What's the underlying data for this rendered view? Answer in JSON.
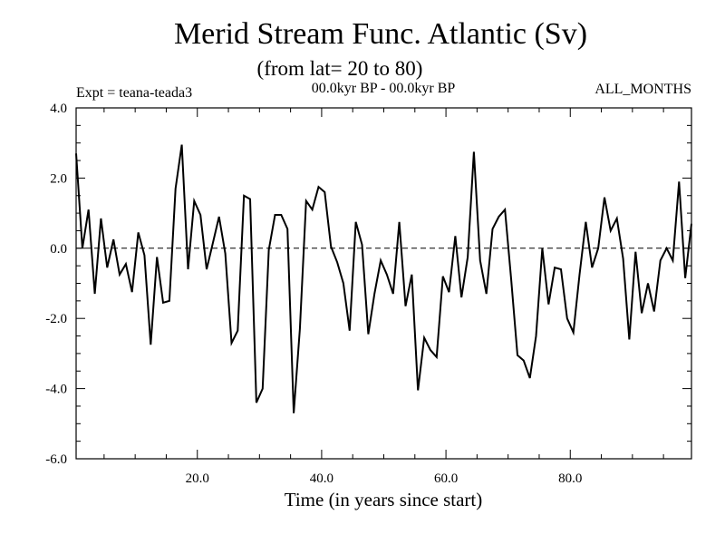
{
  "chart_data": {
    "type": "line",
    "title": "Merid Stream Func. Atlantic (Sv)",
    "subtitle": "(from lat= 20 to 80)",
    "annotation_left": "Expt = teana-teada3",
    "annotation_center": "00.0kyr BP - 00.0kyr BP",
    "annotation_right": "ALL_MONTHS",
    "xlabel": "Time (in years since start)",
    "ylabel": "",
    "xlim": [
      0.5,
      99.5
    ],
    "ylim": [
      -6.0,
      4.0
    ],
    "xticks": [
      20,
      40,
      60,
      80
    ],
    "xtick_labels": [
      "20.0",
      "40.0",
      "60.0",
      "80.0"
    ],
    "yticks": [
      -6,
      -4,
      -2,
      0,
      2,
      4
    ],
    "ytick_labels": [
      "-6.0",
      "-4.0",
      "-2.0",
      "0.0",
      "2.0",
      "4.0"
    ],
    "zero_line": "dashed",
    "series": [
      {
        "name": "Merid Stream Func.",
        "color": "#000000",
        "x": [
          0.5,
          1.5,
          2.5,
          3.5,
          4.5,
          5.5,
          6.5,
          7.5,
          8.5,
          9.5,
          10.5,
          11.5,
          12.5,
          13.5,
          14.5,
          15.5,
          16.5,
          17.5,
          18.5,
          19.5,
          20.5,
          21.5,
          22.5,
          23.5,
          24.5,
          25.5,
          26.5,
          27.5,
          28.5,
          29.5,
          30.5,
          31.5,
          32.5,
          33.5,
          34.5,
          35.5,
          36.5,
          37.5,
          38.5,
          39.5,
          40.5,
          41.5,
          42.5,
          43.5,
          44.5,
          45.5,
          46.5,
          47.5,
          48.5,
          49.5,
          50.5,
          51.5,
          52.5,
          53.5,
          54.5,
          55.5,
          56.5,
          57.5,
          58.5,
          59.5,
          60.5,
          61.5,
          62.5,
          63.5,
          64.5,
          65.5,
          66.5,
          67.5,
          68.5,
          69.5,
          70.5,
          71.5,
          72.5,
          73.5,
          74.5,
          75.5,
          76.5,
          77.5,
          78.5,
          79.5,
          80.5,
          81.5,
          82.5,
          83.5,
          84.5,
          85.5,
          86.5,
          87.5,
          88.5,
          89.5,
          90.5,
          91.5,
          92.5,
          93.5,
          94.5,
          95.5,
          96.5,
          97.5,
          98.5,
          99.5
        ],
        "values": [
          2.7,
          0.0,
          1.1,
          -1.3,
          0.85,
          -0.55,
          0.25,
          -0.75,
          -0.45,
          -1.25,
          0.45,
          -0.2,
          -2.75,
          -0.25,
          -1.55,
          -1.5,
          1.7,
          2.95,
          -0.6,
          1.35,
          0.95,
          -0.6,
          0.15,
          0.9,
          -0.15,
          -2.7,
          -2.35,
          1.5,
          1.4,
          -4.4,
          -4.0,
          -0.05,
          0.95,
          0.95,
          0.55,
          -4.7,
          -2.3,
          1.35,
          1.1,
          1.75,
          1.6,
          0.05,
          -0.4,
          -1.0,
          -2.35,
          0.75,
          0.1,
          -2.45,
          -1.3,
          -0.35,
          -0.75,
          -1.3,
          0.75,
          -1.65,
          -0.75,
          -4.05,
          -2.55,
          -2.9,
          -3.1,
          -0.8,
          -1.25,
          0.35,
          -1.4,
          -0.25,
          2.75,
          -0.35,
          -1.3,
          0.55,
          0.9,
          1.1,
          -0.9,
          -3.05,
          -3.2,
          -3.7,
          -2.5,
          0.0,
          -1.6,
          -0.55,
          -0.6,
          -2.0,
          -2.4,
          -0.75,
          0.75,
          -0.55,
          0.0,
          1.45,
          0.5,
          0.85,
          -0.3,
          -2.6,
          -0.1,
          -1.85,
          -1.0,
          -1.8,
          -0.35,
          0.0,
          -0.35,
          1.9,
          -0.85,
          0.7
        ]
      }
    ]
  }
}
